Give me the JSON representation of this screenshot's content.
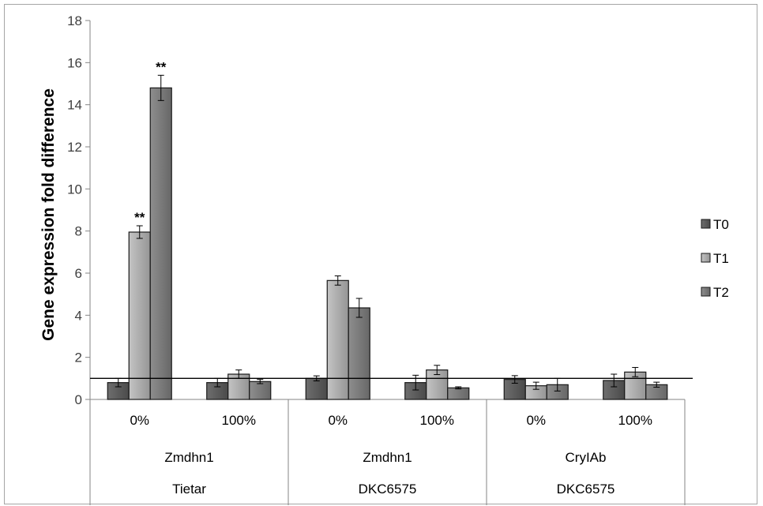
{
  "chart_data": {
    "type": "bar",
    "title": "",
    "ylabel": "Gene expression fold difference",
    "xlabel": "",
    "ylim": [
      0,
      18
    ],
    "yticks": [
      0,
      2,
      4,
      6,
      8,
      10,
      12,
      14,
      16,
      18
    ],
    "grid": false,
    "legend_position": "right",
    "reference_line": 1,
    "categories": [
      {
        "level1": "0%",
        "level2": "Zmdhn1",
        "level3": "Tietar"
      },
      {
        "level1": "100%",
        "level2": "Zmdhn1",
        "level3": "Tietar"
      },
      {
        "level1": "0%",
        "level2": "Zmdhn1",
        "level3": "DKC6575"
      },
      {
        "level1": "100%",
        "level2": "Zmdhn1",
        "level3": "DKC6575"
      },
      {
        "level1": "0%",
        "level2": "CryIAb",
        "level3": "DKC6575"
      },
      {
        "level1": "100%",
        "level2": "CryIAb",
        "level3": "DKC6575"
      }
    ],
    "group_labels_level2": [
      "Zmdhn1",
      "Zmdhn1",
      "CryIAb"
    ],
    "group_labels_level3": [
      "Tietar",
      "DKC6575",
      "DKC6575"
    ],
    "series": [
      {
        "name": "T0",
        "color": "#595959",
        "values": [
          0.8,
          0.8,
          1.0,
          0.8,
          0.95,
          0.9
        ],
        "errors": [
          0.2,
          0.2,
          0.12,
          0.35,
          0.18,
          0.3
        ],
        "significance": [
          "",
          "",
          "",
          "",
          "",
          ""
        ]
      },
      {
        "name": "T1",
        "color": "#a6a6a6",
        "values": [
          7.95,
          1.2,
          5.65,
          1.4,
          0.65,
          1.3
        ],
        "errors": [
          0.3,
          0.2,
          0.22,
          0.22,
          0.17,
          0.22
        ],
        "significance": [
          "**",
          "",
          "",
          "",
          "",
          ""
        ]
      },
      {
        "name": "T2",
        "color": "#7f7f7f",
        "values": [
          14.8,
          0.85,
          4.35,
          0.55,
          0.7,
          0.7
        ],
        "errors": [
          0.6,
          0.1,
          0.45,
          0.05,
          0.3,
          0.12
        ],
        "significance": [
          "**",
          "",
          "",
          "",
          "",
          ""
        ]
      }
    ]
  }
}
